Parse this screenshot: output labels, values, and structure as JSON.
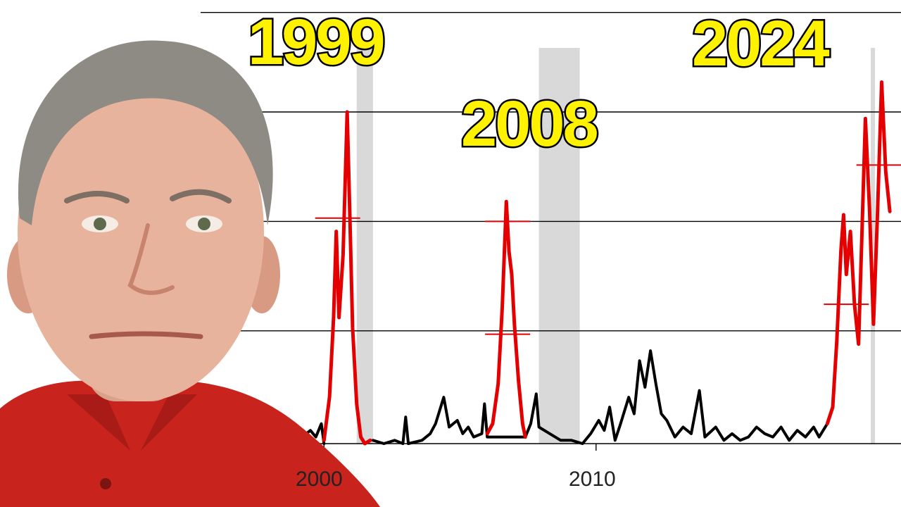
{
  "annotations": {
    "peak_1999": "1999",
    "peak_2008": "2008",
    "peak_2024": "2024"
  },
  "person": {
    "shirt_color": "#c8231d",
    "skin_color": "#e7b39d",
    "hair_color": "#8e8a84"
  },
  "colors": {
    "baseline_series": "#000000",
    "highlight_series": "#e40000",
    "recession_band": "#d9d9d9",
    "gridline": "#000000",
    "annotation_fill": "#fff200",
    "annotation_stroke": "#000000"
  },
  "chart_data": {
    "type": "line",
    "title": "",
    "xlabel": "",
    "ylabel": "",
    "xlim": [
      1997.3,
      2020.9
    ],
    "ylim": [
      0,
      100
    ],
    "x_tick_labels": [
      "2000",
      "2010"
    ],
    "x_ticks": [
      2000,
      2010
    ],
    "grid": "horizontal",
    "gridlines_y": [
      0,
      34,
      67,
      100
    ],
    "shaded_periods": [
      [
        2001.2,
        2001.8
      ],
      [
        2007.9,
        2009.4
      ],
      [
        2020.1,
        2020.2
      ]
    ],
    "series": [
      {
        "style": "black",
        "values": [
          [
            1997.3,
            1
          ],
          [
            1998.0,
            1
          ],
          [
            1998.3,
            5
          ],
          [
            1998.6,
            3
          ],
          [
            1998.9,
            6
          ],
          [
            1999.2,
            2
          ],
          [
            1999.5,
            4
          ],
          [
            1999.7,
            2
          ],
          [
            1999.9,
            6
          ],
          [
            2000.0,
            0
          ],
          [
            2001.8,
            1
          ],
          [
            2002.2,
            0
          ],
          [
            2002.6,
            1
          ],
          [
            2002.9,
            0
          ],
          [
            2003.0,
            8
          ],
          [
            2003.1,
            0
          ],
          [
            2003.6,
            1
          ],
          [
            2003.9,
            3
          ],
          [
            2004.1,
            6
          ],
          [
            2004.4,
            14
          ],
          [
            2004.6,
            5
          ],
          [
            2004.9,
            7
          ],
          [
            2005.1,
            3
          ],
          [
            2005.3,
            5
          ],
          [
            2005.5,
            2
          ],
          [
            2005.8,
            3
          ],
          [
            2005.9,
            12
          ],
          [
            2006.0,
            2
          ],
          [
            2007.4,
            2
          ],
          [
            2007.6,
            6
          ],
          [
            2007.8,
            15
          ],
          [
            2007.9,
            5
          ],
          [
            2008.3,
            3
          ],
          [
            2008.7,
            1
          ],
          [
            2009.1,
            1
          ],
          [
            2009.5,
            0
          ],
          [
            2009.8,
            3
          ],
          [
            2010.1,
            7
          ],
          [
            2010.3,
            4
          ],
          [
            2010.5,
            11
          ],
          [
            2010.7,
            1
          ],
          [
            2010.9,
            6
          ],
          [
            2011.2,
            14
          ],
          [
            2011.4,
            9
          ],
          [
            2011.6,
            25
          ],
          [
            2011.8,
            17
          ],
          [
            2012.0,
            28
          ],
          [
            2012.2,
            18
          ],
          [
            2012.4,
            9
          ],
          [
            2012.6,
            7
          ],
          [
            2012.9,
            2
          ],
          [
            2013.2,
            5
          ],
          [
            2013.5,
            3
          ],
          [
            2013.8,
            16
          ],
          [
            2014.0,
            2
          ],
          [
            2014.4,
            5
          ],
          [
            2014.7,
            1
          ],
          [
            2015.0,
            3
          ],
          [
            2015.3,
            1
          ],
          [
            2015.6,
            2
          ],
          [
            2015.9,
            5
          ],
          [
            2016.2,
            3
          ],
          [
            2016.5,
            2
          ],
          [
            2016.8,
            5
          ],
          [
            2017.1,
            1
          ],
          [
            2017.4,
            4
          ],
          [
            2017.7,
            2
          ],
          [
            2018.0,
            5
          ],
          [
            2018.2,
            2
          ],
          [
            2018.5,
            6
          ]
        ]
      },
      {
        "style": "red",
        "values": [
          [
            2000.0,
            1
          ],
          [
            2000.2,
            14
          ],
          [
            2000.35,
            38
          ],
          [
            2000.45,
            64
          ],
          [
            2000.55,
            38
          ],
          [
            2000.7,
            57
          ],
          [
            2000.85,
            100
          ],
          [
            2000.95,
            68
          ],
          [
            2001.05,
            35
          ],
          [
            2001.2,
            12
          ],
          [
            2001.35,
            2
          ],
          [
            2001.5,
            0
          ],
          [
            2001.7,
            1
          ],
          [
            2006.0,
            3
          ],
          [
            2006.2,
            6
          ],
          [
            2006.4,
            18
          ],
          [
            2006.55,
            41
          ],
          [
            2006.7,
            73
          ],
          [
            2006.8,
            58
          ],
          [
            2006.9,
            51
          ],
          [
            2007.0,
            36
          ],
          [
            2007.15,
            19
          ],
          [
            2007.3,
            6
          ],
          [
            2007.4,
            2
          ],
          [
            2018.5,
            6
          ],
          [
            2018.7,
            11
          ],
          [
            2018.85,
            31
          ],
          [
            2019.0,
            58
          ],
          [
            2019.1,
            69
          ],
          [
            2019.2,
            51
          ],
          [
            2019.35,
            64
          ],
          [
            2019.5,
            42
          ],
          [
            2019.65,
            30
          ],
          [
            2019.75,
            57
          ],
          [
            2019.9,
            98
          ],
          [
            2020.05,
            71
          ],
          [
            2020.2,
            36
          ],
          [
            2020.35,
            70
          ],
          [
            2020.5,
            109
          ],
          [
            2020.65,
            82
          ],
          [
            2020.8,
            70
          ]
        ]
      }
    ]
  }
}
